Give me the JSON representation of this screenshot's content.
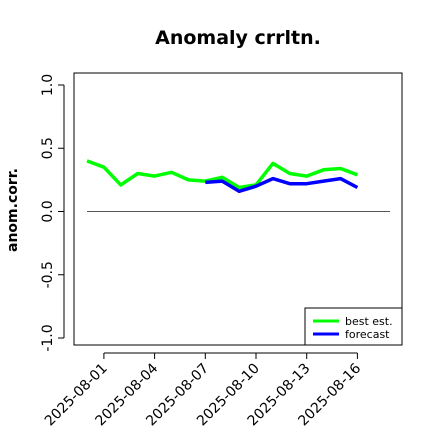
{
  "chart_data": {
    "type": "line",
    "title": "Anomaly crrltn.",
    "xlabel": "",
    "ylabel": "anom.corr.",
    "ylim": [
      -1.0,
      1.0
    ],
    "y_ticks": [
      "-1.0",
      "-0.5",
      "0.0",
      "0.5",
      "1.0"
    ],
    "y_tick_values": [
      -1.0,
      -0.5,
      0.0,
      0.5,
      1.0
    ],
    "x_ticks": [
      "2025-08-01",
      "2025-08-04",
      "2025-08-07",
      "2025-08-10",
      "2025-08-13",
      "2025-08-16"
    ],
    "x_tick_colors": [
      "#000000",
      "#000000",
      "#228B22",
      "#000000",
      "#000000",
      "#000000"
    ],
    "x_dates": [
      "2025-07-31",
      "2025-08-01",
      "2025-08-02",
      "2025-08-03",
      "2025-08-04",
      "2025-08-05",
      "2025-08-06",
      "2025-08-07",
      "2025-08-08",
      "2025-08-09",
      "2025-08-10",
      "2025-08-11",
      "2025-08-12",
      "2025-08-13",
      "2025-08-14",
      "2025-08-15",
      "2025-08-16"
    ],
    "reference_line": 0.0,
    "grid": false,
    "legend_position": "bottom-right",
    "series": [
      {
        "name": "best est.",
        "color": "#00ff00",
        "values": [
          0.4,
          0.35,
          0.21,
          0.3,
          0.28,
          0.31,
          0.25,
          0.24,
          0.27,
          0.19,
          0.21,
          0.38,
          0.3,
          0.28,
          0.33,
          0.34,
          0.29
        ]
      },
      {
        "name": "forecast",
        "color": "#0000ff",
        "values": [
          null,
          null,
          null,
          null,
          null,
          null,
          null,
          0.23,
          0.24,
          0.16,
          0.2,
          0.26,
          0.22,
          0.22,
          0.24,
          0.26,
          0.19
        ]
      }
    ]
  }
}
